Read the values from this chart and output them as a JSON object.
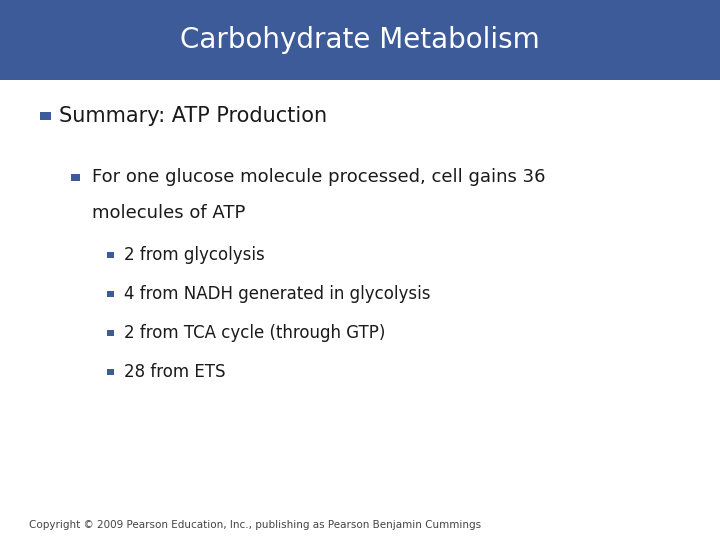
{
  "title": "Carbohydrate Metabolism",
  "title_bg_color": "#3d5a99",
  "title_text_color": "#ffffff",
  "title_fontsize": 20,
  "bg_color": "#ffffff",
  "bullet_color": "#3d5a99",
  "text_color": "#1a1a1a",
  "level1_text": "Summary: ATP Production",
  "level1_fontsize": 15,
  "level2_line1": "For one glucose molecule processed, cell gains 36",
  "level2_line2": "molecules of ATP",
  "level2_fontsize": 13,
  "level3_items": [
    "2 from glycolysis",
    "4 from NADH generated in glycolysis",
    "2 from TCA cycle (through GTP)",
    "28 from ETS"
  ],
  "level3_fontsize": 12,
  "copyright": "Copyright © 2009 Pearson Education, Inc., publishing as Pearson Benjamin Cummings",
  "copyright_fontsize": 7.5,
  "title_bar_height": 0.148
}
